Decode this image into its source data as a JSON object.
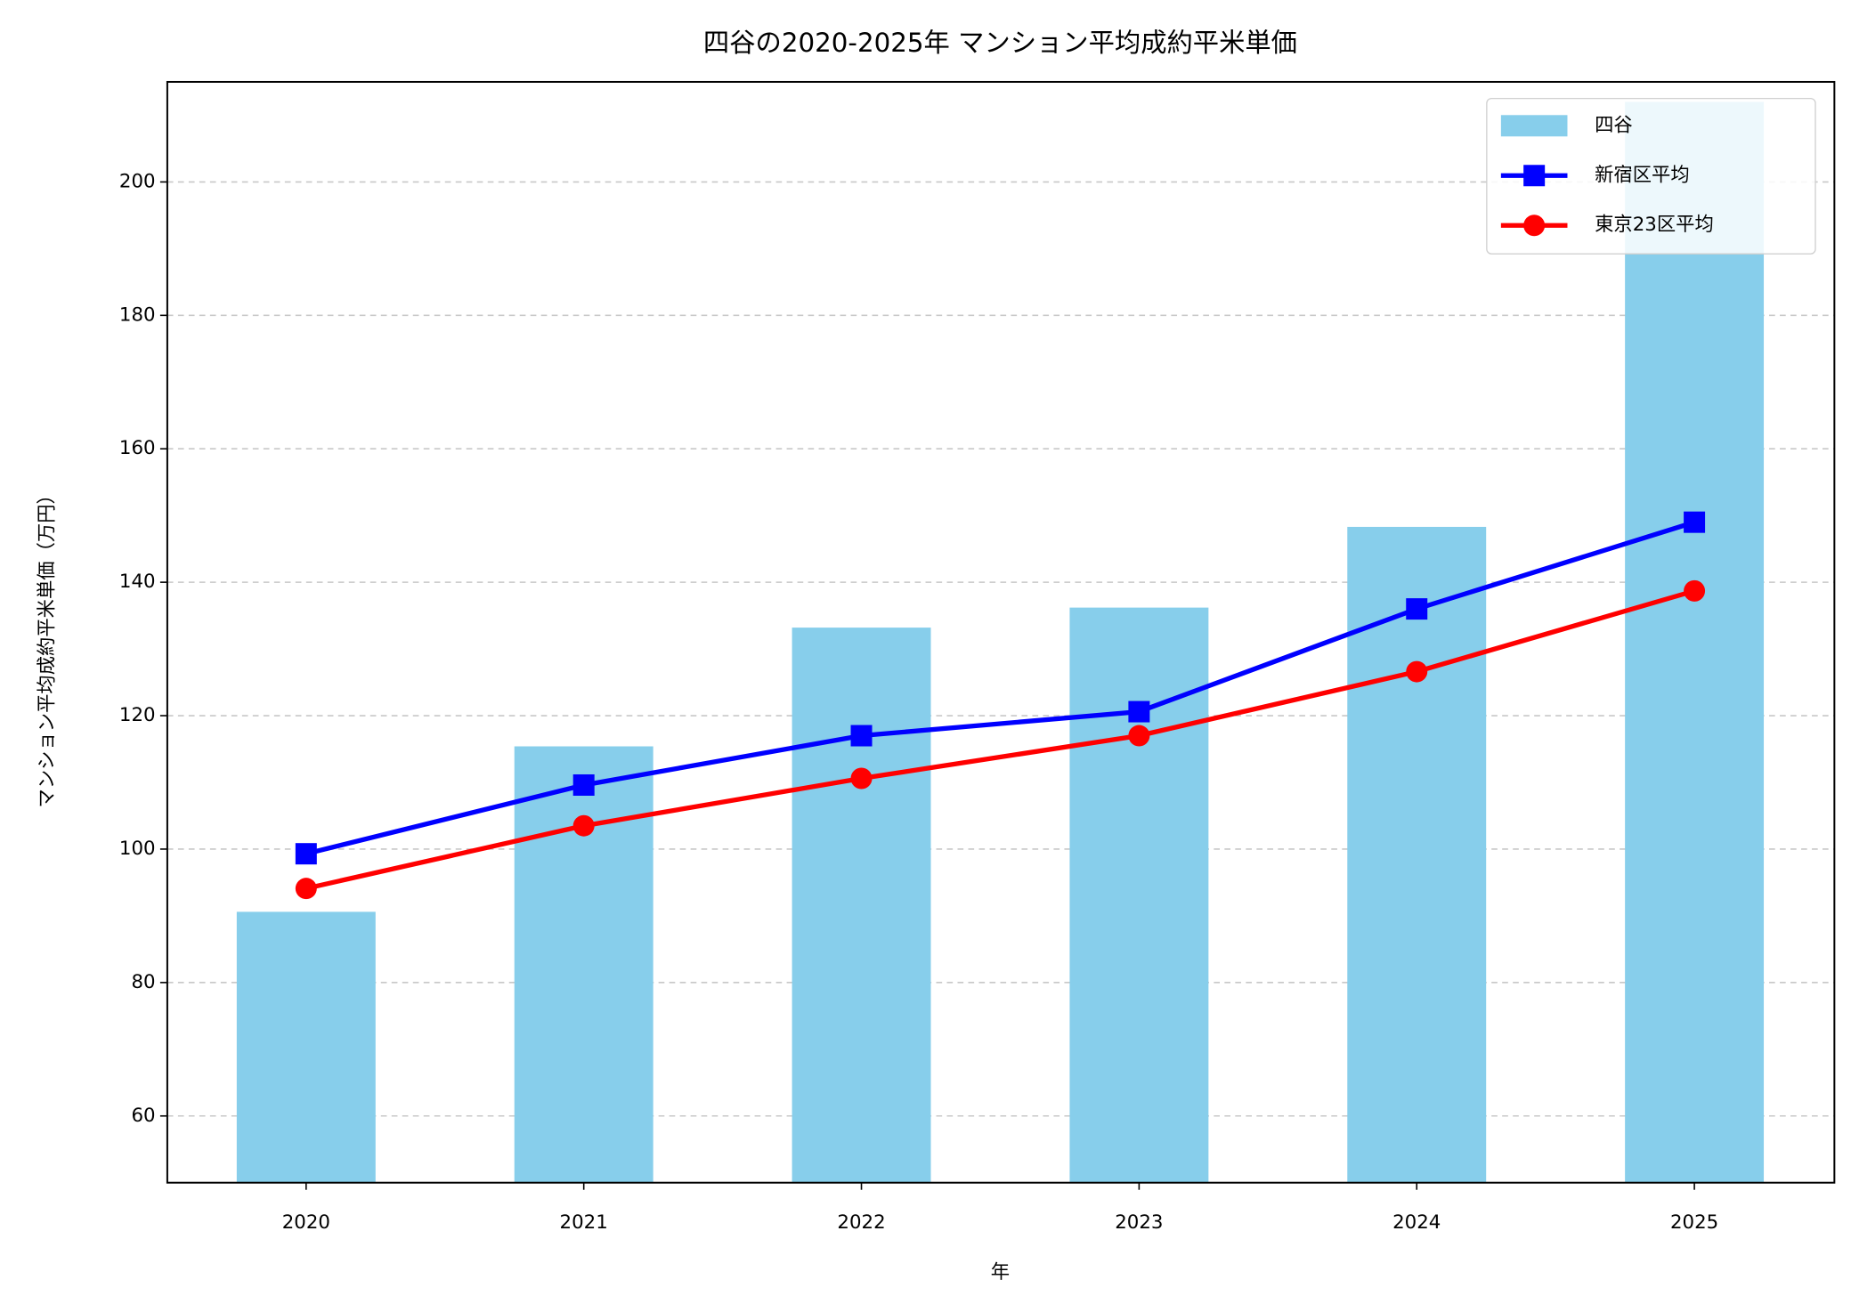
{
  "chart_data": {
    "type": "bar_line",
    "title": "四谷の2020-2025年 マンション平均成約平米単価",
    "x_label": "年",
    "y_label": "マンション平均成約平米単価（万円）",
    "categories": [
      "2020",
      "2021",
      "2022",
      "2023",
      "2024",
      "2025"
    ],
    "series": [
      {
        "name": "四谷",
        "type": "bar",
        "color": "#87ceeb",
        "values": [
          90.6,
          115.4,
          133.2,
          136.2,
          148.3,
          212
        ]
      },
      {
        "name": "新宿区平均",
        "type": "line",
        "marker": "square",
        "color": "#0000ff",
        "values": [
          99.3,
          109.6,
          117.0,
          120.6,
          136.0,
          149.0
        ]
      },
      {
        "name": "東京23区平均",
        "type": "line",
        "marker": "circle",
        "color": "#ff0000",
        "values": [
          94.1,
          103.5,
          110.6,
          117.0,
          126.6,
          138.7
        ]
      }
    ],
    "ylim": [
      50,
      215
    ],
    "yticks": [
      60,
      80,
      100,
      120,
      140,
      160,
      180,
      200
    ],
    "grid": true,
    "legend": "upper right"
  }
}
